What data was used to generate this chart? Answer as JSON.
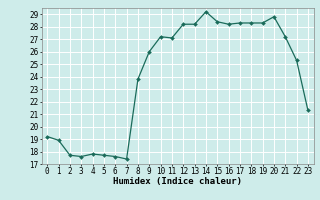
{
  "x": [
    0,
    1,
    2,
    3,
    4,
    5,
    6,
    7,
    8,
    9,
    10,
    11,
    12,
    13,
    14,
    15,
    16,
    17,
    18,
    19,
    20,
    21,
    22,
    23
  ],
  "y": [
    19.2,
    18.9,
    17.7,
    17.6,
    17.8,
    17.7,
    17.6,
    17.4,
    23.8,
    26.0,
    27.2,
    27.1,
    28.2,
    28.2,
    29.2,
    28.4,
    28.2,
    28.3,
    28.3,
    28.3,
    28.8,
    27.2,
    25.3,
    21.3
  ],
  "line_color": "#1a6b5a",
  "marker": "D",
  "marker_size": 2,
  "bg_color": "#ceecea",
  "grid_color": "#ffffff",
  "xlabel": "Humidex (Indice chaleur)",
  "ylim": [
    17,
    29.5
  ],
  "xlim": [
    -0.5,
    23.5
  ],
  "yticks": [
    17,
    18,
    19,
    20,
    21,
    22,
    23,
    24,
    25,
    26,
    27,
    28,
    29
  ],
  "xticks": [
    0,
    1,
    2,
    3,
    4,
    5,
    6,
    7,
    8,
    9,
    10,
    11,
    12,
    13,
    14,
    15,
    16,
    17,
    18,
    19,
    20,
    21,
    22,
    23
  ],
  "tick_fontsize": 5.5,
  "xlabel_fontsize": 6.5
}
